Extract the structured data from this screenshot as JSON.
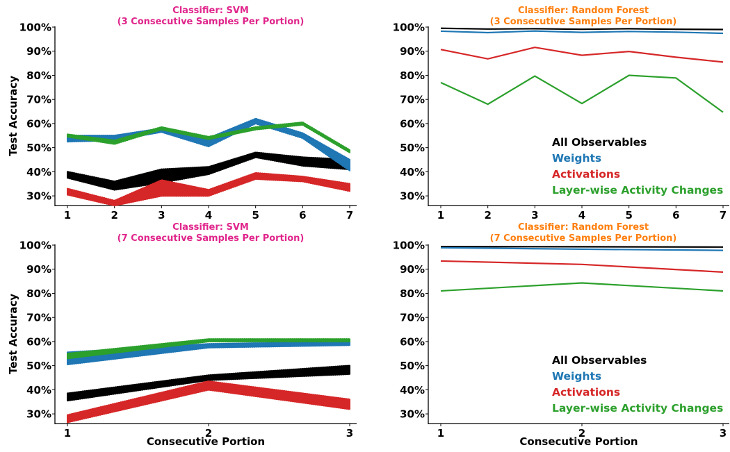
{
  "colors": {
    "all_observables": "#000000",
    "weights": "#1f77b4",
    "activations": "#d62728",
    "layer_wise": "#2ca02c",
    "svm_title": "#e0258b",
    "rf_title": "#ff7f0e"
  },
  "chart_data": [
    {
      "type": "line",
      "title": "Classifier: SVM",
      "subtitle": "(3 Consecutive Samples Per Portion)",
      "ylabel": "Test Accuracy",
      "xlabel": "",
      "x": [
        1,
        2,
        3,
        4,
        5,
        6,
        7
      ],
      "xtick_labels": [
        "1",
        "2",
        "3",
        "4",
        "5",
        "6",
        "7"
      ],
      "ylim": [
        26,
        100
      ],
      "ytick_labels": [
        "30%",
        "40%",
        "50%",
        "60%",
        "70%",
        "80%",
        "90%",
        "100%"
      ],
      "band": true,
      "series": [
        {
          "name": "All Observables",
          "color": "all_observables",
          "upper": [
            40,
            36,
            41,
            42,
            48,
            46,
            45
          ],
          "lower": [
            37.5,
            32.5,
            35.5,
            39,
            46,
            42.5,
            41
          ]
        },
        {
          "name": "Weights",
          "color": "weights",
          "upper": [
            55,
            55,
            58,
            54,
            62,
            56,
            45
          ],
          "lower": [
            52.5,
            53,
            56.5,
            50.5,
            60,
            54,
            40.5
          ]
        },
        {
          "name": "Activations",
          "color": "activations",
          "upper": [
            33,
            28,
            36.5,
            32.5,
            39.5,
            38,
            35
          ],
          "lower": [
            30.5,
            26,
            30,
            30,
            37,
            36,
            32
          ]
        },
        {
          "name": "Layer-wise Activity Changes",
          "color": "layer_wise",
          "upper": [
            55.5,
            53,
            58.5,
            54.5,
            58.5,
            60.5,
            49
          ],
          "lower": [
            54.5,
            51.5,
            57.5,
            53.5,
            57.5,
            59.5,
            48
          ]
        }
      ]
    },
    {
      "type": "line",
      "title": "Classifier: Random Forest",
      "subtitle": "(3 Consecutive Samples Per Portion)",
      "ylabel": "",
      "xlabel": "",
      "x": [
        1,
        2,
        3,
        4,
        5,
        6,
        7
      ],
      "xtick_labels": [
        "1",
        "2",
        "3",
        "4",
        "5",
        "6",
        "7"
      ],
      "ylim": [
        26,
        100
      ],
      "ytick_labels": [
        "30%",
        "40%",
        "50%",
        "60%",
        "70%",
        "80%",
        "90%",
        "100%"
      ],
      "band": false,
      "series": [
        {
          "name": "All Observables",
          "color": "all_observables",
          "values": [
            99.5,
            99.2,
            99.3,
            99.1,
            99.3,
            99.1,
            99.0
          ]
        },
        {
          "name": "Weights",
          "color": "weights",
          "values": [
            98.3,
            97.7,
            98.4,
            97.8,
            98.2,
            97.9,
            97.4
          ]
        },
        {
          "name": "Activations",
          "color": "activations",
          "values": [
            90.7,
            86.8,
            91.6,
            88.3,
            89.9,
            87.5,
            85.5
          ]
        },
        {
          "name": "Layer-wise Activity Changes",
          "color": "layer_wise",
          "values": [
            77,
            68,
            79.7,
            68.3,
            80,
            78.9,
            64.7
          ]
        }
      ],
      "legend": {
        "placement": "lower-right",
        "entries": [
          "All Observables",
          "Weights",
          "Activations",
          "Layer-wise Activity Changes"
        ]
      }
    },
    {
      "type": "line",
      "title": "Classifier: SVM",
      "subtitle": "(7 Consecutive Samples Per Portion)",
      "ylabel": "Test Accuracy",
      "xlabel": "Consecutive Portion",
      "x": [
        1,
        2,
        3
      ],
      "xtick_labels": [
        "1",
        "2",
        "3"
      ],
      "ylim": [
        26,
        100
      ],
      "ytick_labels": [
        "30%",
        "40%",
        "50%",
        "60%",
        "70%",
        "80%",
        "90%",
        "100%"
      ],
      "band": true,
      "series": [
        {
          "name": "All Observables",
          "color": "all_observables",
          "upper": [
            38.5,
            46,
            50
          ],
          "lower": [
            35.5,
            44,
            46.5
          ]
        },
        {
          "name": "Weights",
          "color": "weights",
          "upper": [
            55.5,
            59,
            60
          ],
          "lower": [
            50.5,
            57.5,
            58.5
          ]
        },
        {
          "name": "Activations",
          "color": "activations",
          "upper": [
            29.5,
            43.5,
            36
          ],
          "lower": [
            26.5,
            40,
            32
          ]
        },
        {
          "name": "Layer-wise Activity Changes",
          "color": "layer_wise",
          "upper": [
            55,
            61,
            61
          ],
          "lower": [
            53,
            60,
            60
          ]
        }
      ]
    },
    {
      "type": "line",
      "title": "Classifier: Random Forest",
      "subtitle": "(7 Consecutive Samples Per Portion)",
      "ylabel": "",
      "xlabel": "Consecutive Portion",
      "x": [
        1,
        2,
        3
      ],
      "xtick_labels": [
        "1",
        "2",
        "3"
      ],
      "ylim": [
        26,
        100
      ],
      "ytick_labels": [
        "30%",
        "40%",
        "50%",
        "60%",
        "70%",
        "80%",
        "90%",
        "100%"
      ],
      "band": false,
      "series": [
        {
          "name": "All Observables",
          "color": "all_observables",
          "values": [
            99.4,
            99.3,
            99.2
          ]
        },
        {
          "name": "Weights",
          "color": "weights",
          "values": [
            98.9,
            98.3,
            97.8
          ]
        },
        {
          "name": "Activations",
          "color": "activations",
          "values": [
            93.4,
            92.0,
            88.8
          ]
        },
        {
          "name": "Layer-wise Activity Changes",
          "color": "layer_wise",
          "values": [
            81,
            84.3,
            81
          ]
        }
      ],
      "legend": {
        "placement": "lower-right",
        "entries": [
          "All Observables",
          "Weights",
          "Activations",
          "Layer-wise Activity Changes"
        ]
      }
    }
  ]
}
